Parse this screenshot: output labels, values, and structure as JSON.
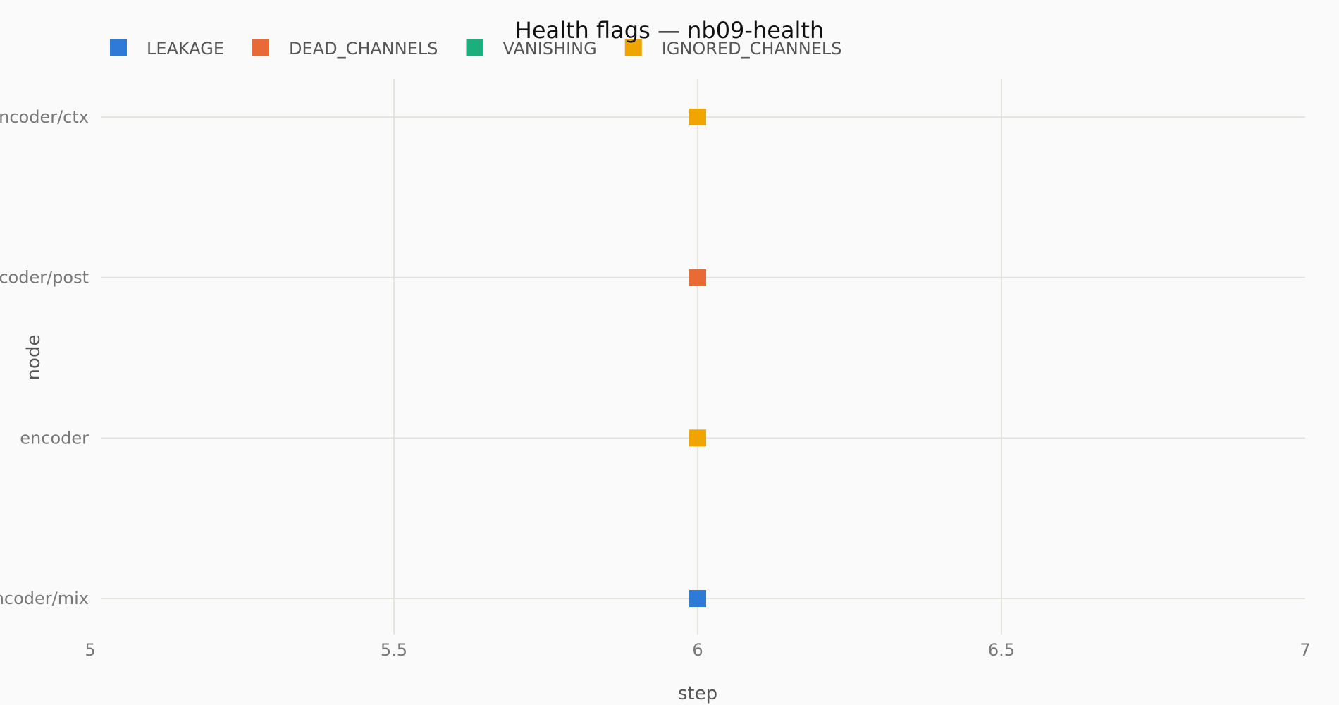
{
  "chart_data": {
    "type": "scatter",
    "title": "Health flags — nb09-health",
    "xlabel": "step",
    "ylabel": "node",
    "xlim": [
      5,
      7
    ],
    "x_ticks": [
      5,
      5.5,
      6,
      6.5,
      7
    ],
    "x_tick_labels": [
      "5",
      "5.5",
      "6",
      "6.5",
      "7"
    ],
    "y_categories": [
      "encoder/ctx",
      "encoder/post",
      "encoder",
      "encoder/mix"
    ],
    "grid": true,
    "legend_position": "top-left",
    "series": [
      {
        "name": "LEAKAGE",
        "color": "#2d7bd6",
        "points": [
          {
            "x": 6,
            "y": "encoder/mix"
          }
        ]
      },
      {
        "name": "DEAD_CHANNELS",
        "color": "#ea6a36",
        "points": [
          {
            "x": 6,
            "y": "encoder/post"
          }
        ]
      },
      {
        "name": "VANISHING",
        "color": "#1aaf7c",
        "points": []
      },
      {
        "name": "IGNORED_CHANNELS",
        "color": "#f0a400",
        "points": [
          {
            "x": 6,
            "y": "encoder/ctx"
          },
          {
            "x": 6,
            "y": "encoder"
          }
        ]
      }
    ]
  }
}
